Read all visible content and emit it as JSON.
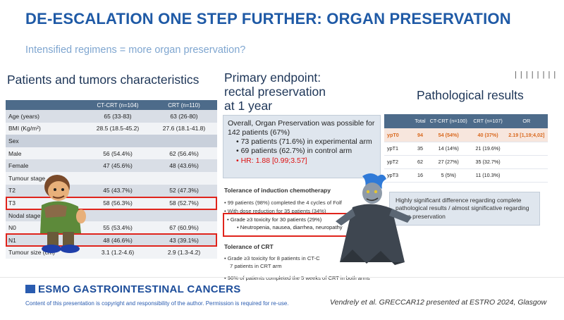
{
  "slide": {
    "title": "DE-ESCALATION ONE STEP FURTHER: ORGAN PRESERVATION",
    "subtitle": "Intensified regimens = more organ preservation?"
  },
  "patients": {
    "heading": "Patients and tumors characteristics",
    "columns": [
      "",
      "CT-CRT (n=104)",
      "CRT (n=110)"
    ],
    "rows": [
      {
        "label": "Age (years)",
        "ct": "65 (33-83)",
        "crt": "63 (26-80)",
        "kind": "odd"
      },
      {
        "label": "BMI (Kg/m²)",
        "ct": "28.5 (18.5-45.2)",
        "crt": "27.6 (18.1-41.8)",
        "kind": "even"
      },
      {
        "label": "Sex",
        "ct": "",
        "crt": "",
        "kind": "sec"
      },
      {
        "label": "Male",
        "ct": "56 (54.4%)",
        "crt": "62 (56.4%)",
        "kind": "even"
      },
      {
        "label": "Female",
        "ct": "47 (45.6%)",
        "crt": "48 (43.6%)",
        "kind": "odd"
      },
      {
        "label": "Tumour stage",
        "ct": "",
        "crt": "",
        "kind": "even"
      },
      {
        "label": "T2",
        "ct": "45 (43.7%)",
        "crt": "52 (47.3%)",
        "kind": "odd"
      },
      {
        "label": "T3",
        "ct": "58 (56.3%)",
        "crt": "58 (52.7%)",
        "kind": "even"
      },
      {
        "label": "Nodal stage",
        "ct": "",
        "crt": "",
        "kind": "odd"
      },
      {
        "label": "N0",
        "ct": "55 (53.4%)",
        "crt": "67 (60.9%)",
        "kind": "even"
      },
      {
        "label": "N1",
        "ct": "48 (46.6%)",
        "crt": "43 (39.1%)",
        "kind": "odd"
      },
      {
        "label": "Tumour size (cm)",
        "ct": "3.1 (1.2-4.6)",
        "crt": "2.9 (1.3-4.2)",
        "kind": "even"
      }
    ]
  },
  "endpoint": {
    "heading_l1": "Primary endpoint:",
    "heading_l2": "rectal preservation",
    "heading_l3": "at 1 year",
    "summary": "Overall, Organ Preservation was possible for 142 patients (67%)",
    "bullet1": "73 patients (71.6%) in experimental arm",
    "bullet2": "69 patients (62.7%) in control arm",
    "hr": "HR: 1.88 [0.99;3.57]"
  },
  "tolerance_induction": {
    "title": "Tolerance of induction chemotherapy",
    "b1": "99 patients (98%) completed the 4 cycles of Folf",
    "b2": "With dose reduction for 35 patients (34%)",
    "b3": "Grade ≥3 toxicity for  30 patients (29%)",
    "b3_sub": "Neutropenia, nausea, diarrhea, neuropathy"
  },
  "tolerance_crt": {
    "title": "Tolerance of CRT",
    "b1": "Grade ≥3 toxicity for 8 patients in CT-C",
    "b1_cont": "7 patients in CRT arm",
    "b2": "96% of patients completed the 5 weeks of CRT in both arms"
  },
  "pathology": {
    "bars": "| | | | | | | |",
    "heading": "Pathological results",
    "columns": [
      "",
      "Total",
      "CT-CRT (n=100)",
      "CRT (n=107)",
      "OR"
    ],
    "rows": [
      {
        "label": "ypT0",
        "total": "94",
        "ct": "54 (54%)",
        "crt": "40 (37%)",
        "or": "2.19 [1,19;4,02]"
      },
      {
        "label": "ypT1",
        "total": "35",
        "ct": "14 (14%)",
        "crt": "21 (19.6%)",
        "or": ""
      },
      {
        "label": "ypT2",
        "total": "62",
        "ct": "27 (27%)",
        "crt": "35 (32.7%)",
        "or": ""
      },
      {
        "label": "ypT3",
        "total": "16",
        "ct": "5 (5%)",
        "crt": "11 (10.3%)",
        "or": ""
      }
    ],
    "conclusion": "Highly significant difference regarding complete pathological results / almost significative regarding organ preservation"
  },
  "footer": {
    "logo": "ESMO GASTROINTESTINAL CANCERS",
    "disclaimer": "Content of this presentation is copyright and responsibility of the author. Permission is required for re-use.",
    "citation": "Vendrely et al. GRECCAR12 presented at ESTRO 2024, Glasgow"
  },
  "colors": {
    "title_blue": "#1f5aa6",
    "highlight_red": "#e0241c",
    "table_header": "#4d6b8a",
    "ypT0_orange": "#d96a20"
  }
}
